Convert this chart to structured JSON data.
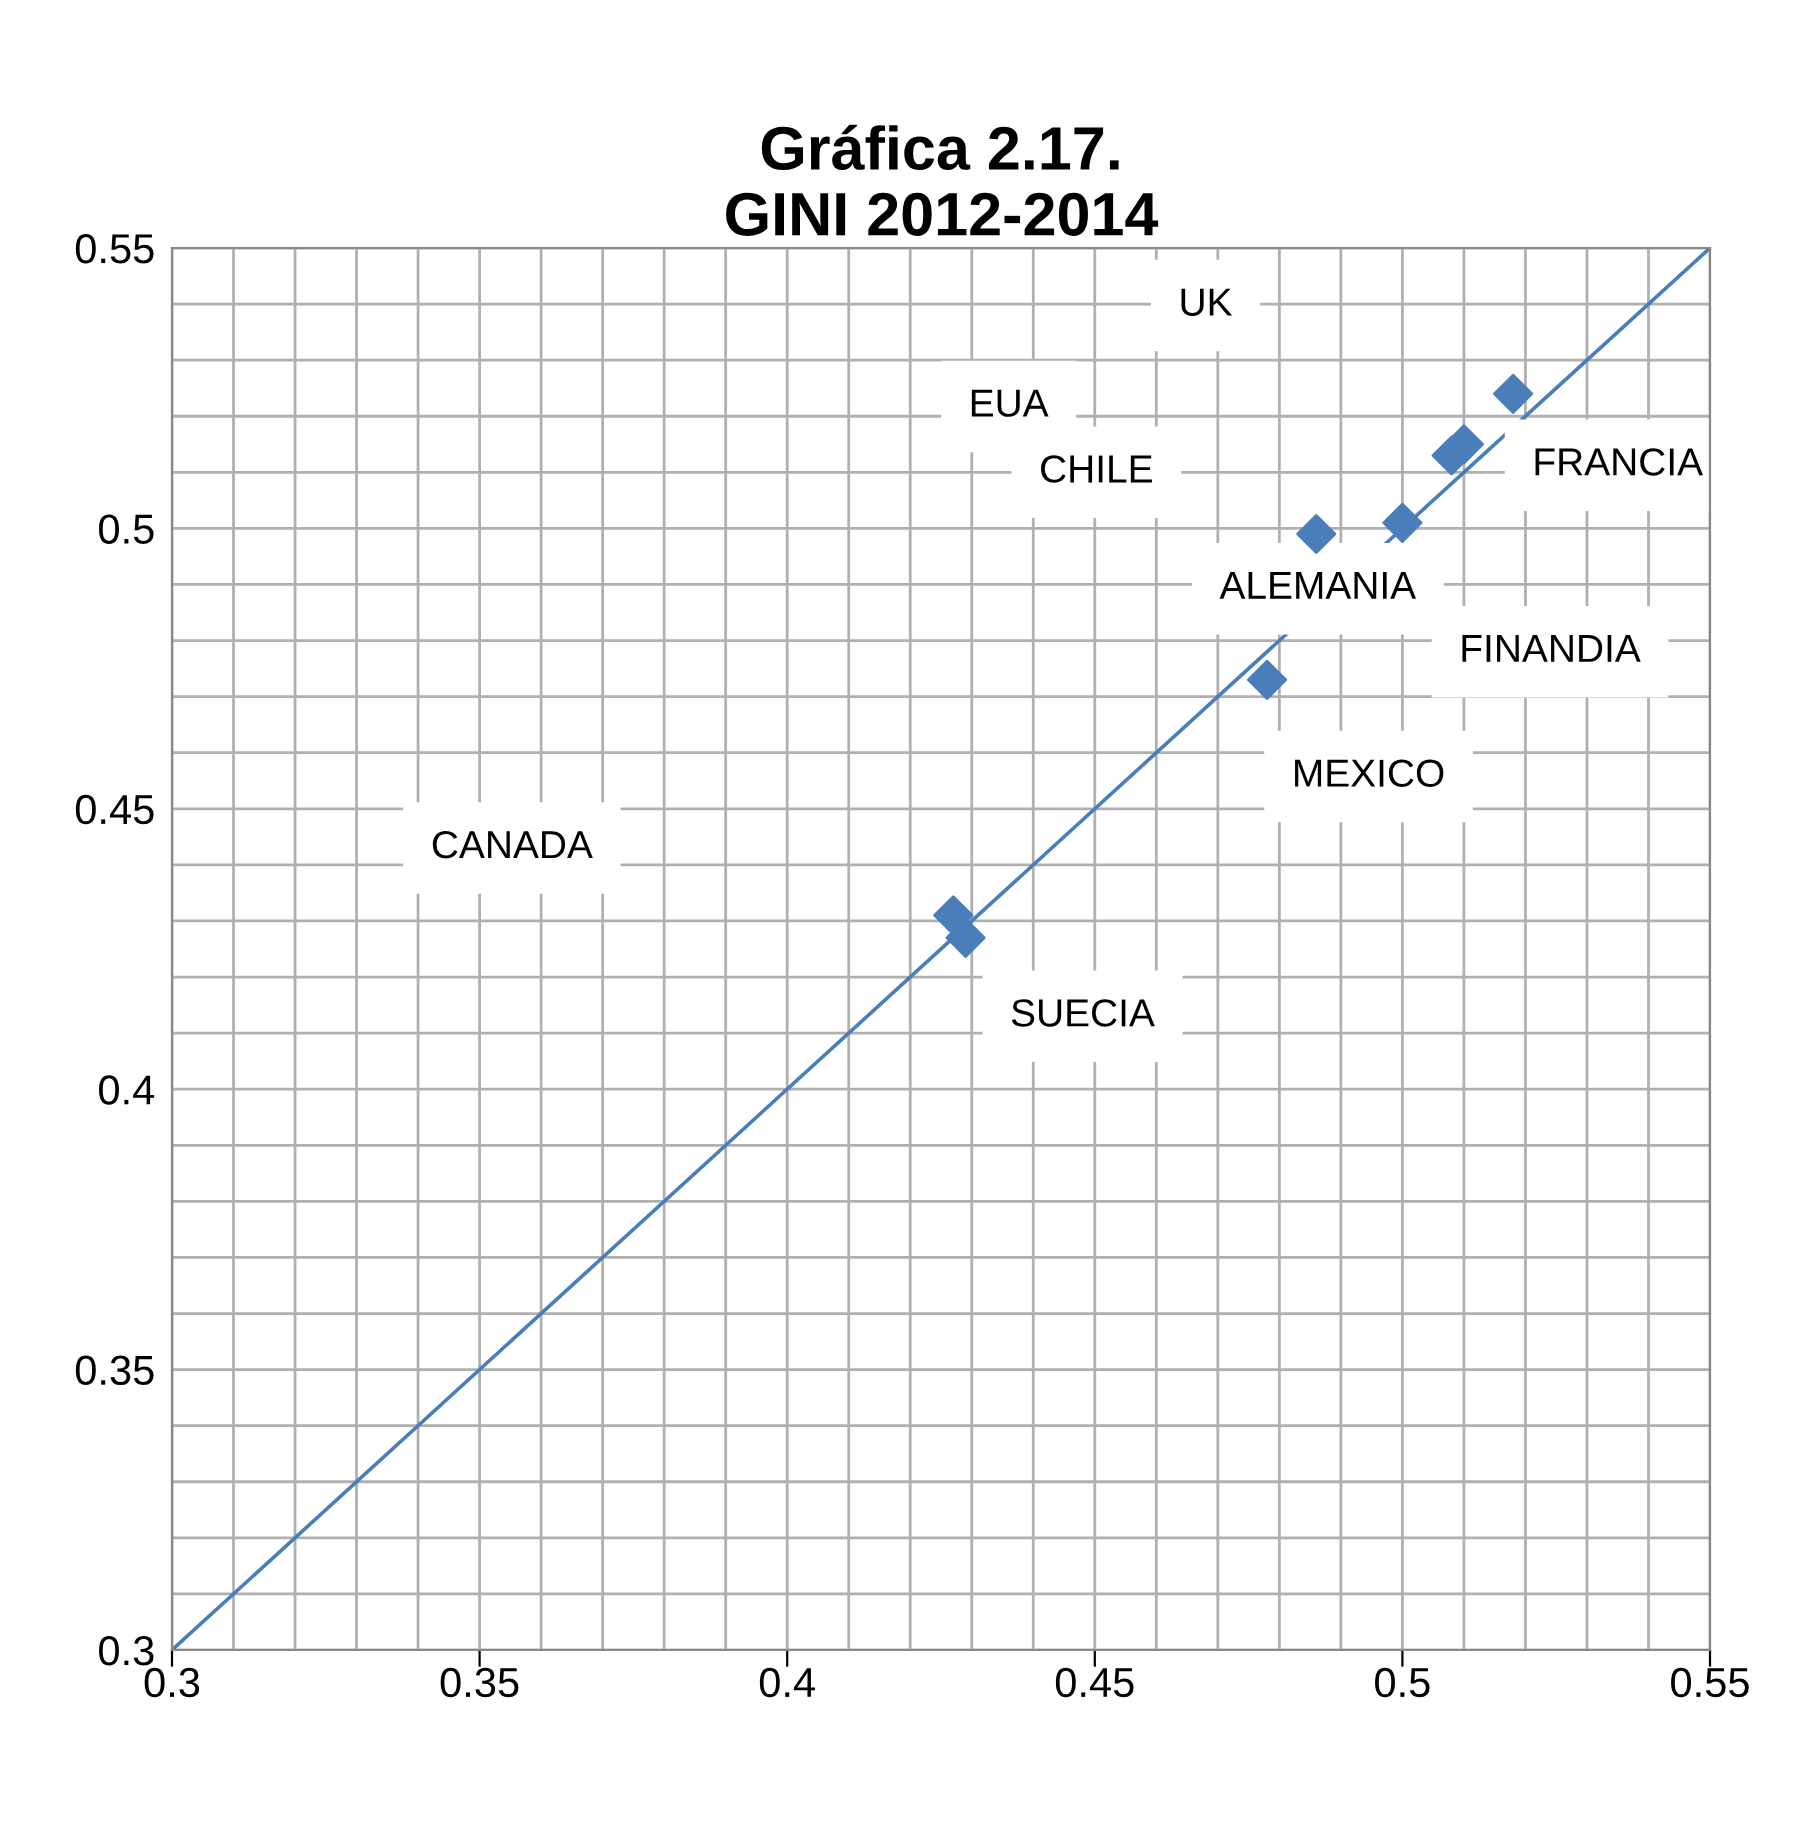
{
  "chart_data": {
    "type": "scatter",
    "title": "Gráfica 2.17.\nGINI 2012-2014",
    "series": [
      {
        "color": "#4a7ebb",
        "marker": "diamond",
        "x": [
          0.518,
          0.51,
          0.508,
          0.5,
          0.486,
          0.478,
          0.429,
          0.427
        ],
        "values": [
          0.524,
          0.515,
          0.513,
          0.501,
          0.499,
          0.473,
          0.427,
          0.431
        ]
      },
      {
        "type": "line",
        "color": "#4a7ebb",
        "marker": "none",
        "x": [
          0.3,
          0.55
        ],
        "values": [
          0.3,
          0.55
        ]
      }
    ],
    "annotations": [
      "UK",
      "EUA",
      "CHILE",
      "FRANCIA",
      "ALEMANIA",
      "FINANDIA",
      "MEXICO",
      "CANADA",
      "SUECIA"
    ],
    "xlim": [
      0.3,
      0.55
    ],
    "ylim": [
      0.3,
      0.55
    ],
    "xticks": [
      0.3,
      {
        "value": 0.31,
        "label": null
      },
      {
        "value": 0.32,
        "label": null
      },
      {
        "value": 0.33,
        "label": null
      },
      {
        "value": 0.34,
        "label": null
      },
      0.35,
      {
        "value": 0.36,
        "label": null
      },
      {
        "value": 0.37,
        "label": null
      },
      {
        "value": 0.38,
        "label": null
      },
      {
        "value": 0.39,
        "label": null
      },
      0.4,
      {
        "value": 0.41,
        "label": null
      },
      {
        "value": 0.42,
        "label": null
      },
      {
        "value": 0.43,
        "label": null
      },
      {
        "value": 0.44,
        "label": null
      },
      0.45,
      {
        "value": 0.46,
        "label": null
      },
      {
        "value": 0.47,
        "label": null
      },
      {
        "value": 0.48,
        "label": null
      },
      {
        "value": 0.49,
        "label": null
      },
      0.5,
      {
        "value": 0.51,
        "label": null
      },
      {
        "value": 0.52,
        "label": null
      },
      {
        "value": 0.53,
        "label": null
      },
      {
        "value": 0.54,
        "label": null
      },
      0.55
    ],
    "yticks": [
      0.3,
      {
        "value": 0.31,
        "label": null
      },
      {
        "value": 0.32,
        "label": null
      },
      {
        "value": 0.33,
        "label": null
      },
      {
        "value": 0.34,
        "label": null
      },
      0.35,
      {
        "value": 0.36,
        "label": null
      },
      {
        "value": 0.37,
        "label": null
      },
      {
        "value": 0.38,
        "label": null
      },
      {
        "value": 0.39,
        "label": null
      },
      0.4,
      {
        "value": 0.41,
        "label": null
      },
      {
        "value": 0.42,
        "label": null
      },
      {
        "value": 0.43,
        "label": null
      },
      {
        "value": 0.44,
        "label": null
      },
      0.45,
      {
        "value": 0.46,
        "label": null
      },
      {
        "value": 0.47,
        "label": null
      },
      {
        "value": 0.48,
        "label": null
      },
      {
        "value": 0.49,
        "label": null
      },
      0.5,
      {
        "value": 0.51,
        "label": null
      },
      {
        "value": 0.52,
        "label": null
      },
      {
        "value": 0.53,
        "label": null
      },
      {
        "value": 0.54,
        "label": null
      },
      0.55
    ],
    "grid": true,
    "legend": false
  }
}
